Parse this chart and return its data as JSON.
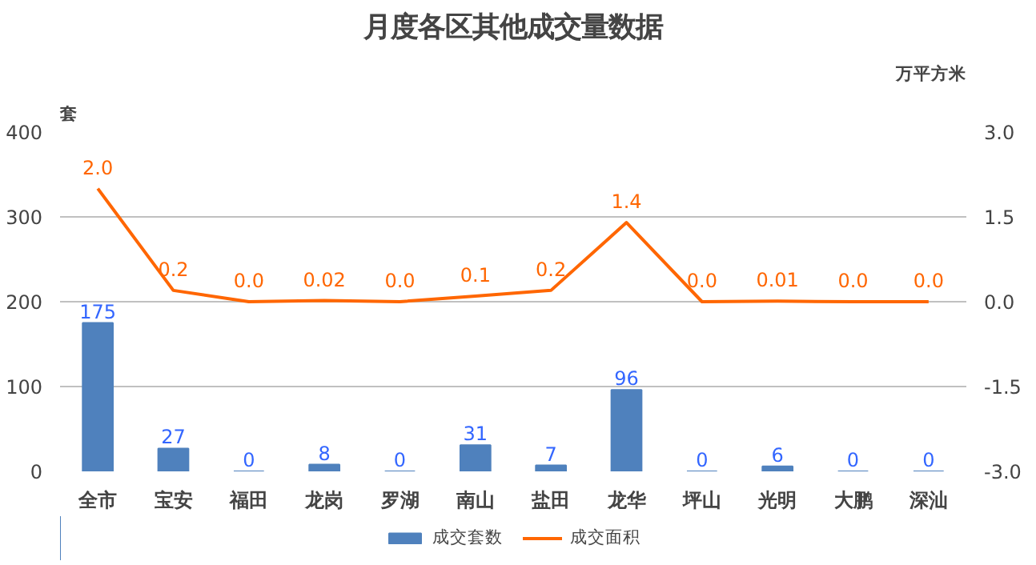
{
  "chart_data": {
    "type": "bar",
    "title": "月度各区其他成交量数据",
    "ylabel": "套",
    "y2label": "万平方米",
    "categories": [
      "全市",
      "宝安",
      "福田",
      "龙岗",
      "罗湖",
      "南山",
      "盐田",
      "龙华",
      "坪山",
      "光明",
      "大鹏",
      "深汕"
    ],
    "series": [
      {
        "name": "成交套数",
        "color": "#4f81bd",
        "values": [
          175,
          27,
          0,
          8,
          0,
          31,
          7,
          96,
          0,
          6,
          0,
          0
        ],
        "value_labels": [
          "175",
          "27",
          "0",
          "8",
          "0",
          "31",
          "7",
          "96",
          "0",
          "6",
          "0",
          "0"
        ]
      },
      {
        "name": "成交面积",
        "type": "line",
        "axis": "y2",
        "color": "#ff6600",
        "values": [
          2.0,
          0.2,
          0.0,
          0.02,
          0.0,
          0.1,
          0.2,
          1.4,
          0.0,
          0.01,
          0.0,
          0.0
        ],
        "value_labels": [
          "2.0",
          "0.2",
          "0.0",
          "0.02",
          "0.0",
          "0.1",
          "0.2",
          "1.4",
          "0.0",
          "0.01",
          "0.0",
          "0.0"
        ]
      }
    ],
    "ylim": [
      0,
      400
    ],
    "yticks": [
      0,
      100,
      200,
      300,
      400
    ],
    "y2lim": [
      -3.0,
      3.0
    ],
    "y2ticks": [
      {
        "value": -3.0,
        "label": "-3.0"
      },
      {
        "value": -1.5,
        "label": "-1.5"
      },
      {
        "value": 0,
        "label": "0.0"
      },
      {
        "value": 1.5,
        "label": "1.5"
      },
      {
        "value": 3.0,
        "label": "3.0"
      }
    ],
    "grid": "y",
    "legend": "bottom",
    "marker": "none",
    "line_style": "solid"
  }
}
